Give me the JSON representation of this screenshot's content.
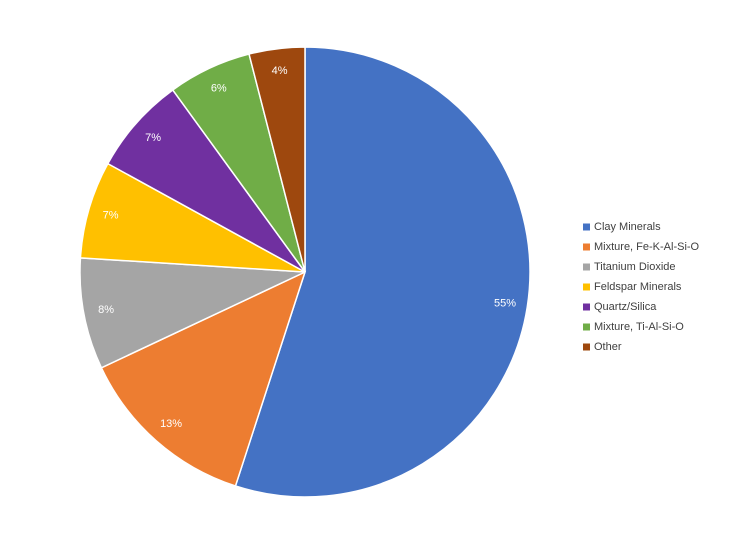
{
  "chart_data": {
    "type": "pie",
    "categories": [
      "Clay Minerals",
      "Mixture, Fe-K-Al-Si-O",
      "Titanium Dioxide",
      "Feldspar Minerals",
      "Quartz/Silica",
      "Mixture, Ti-Al-Si-O",
      "Other"
    ],
    "values": [
      55,
      13,
      8,
      7,
      7,
      6,
      4
    ],
    "value_labels": [
      "55%",
      "13%",
      "8%",
      "7%",
      "7%",
      "6%",
      "4%"
    ],
    "colors": [
      "#4472c4",
      "#ed7d31",
      "#a5a5a5",
      "#ffc000",
      "#7030a0",
      "#70ad47",
      "#9e480e"
    ],
    "legend": "right"
  }
}
